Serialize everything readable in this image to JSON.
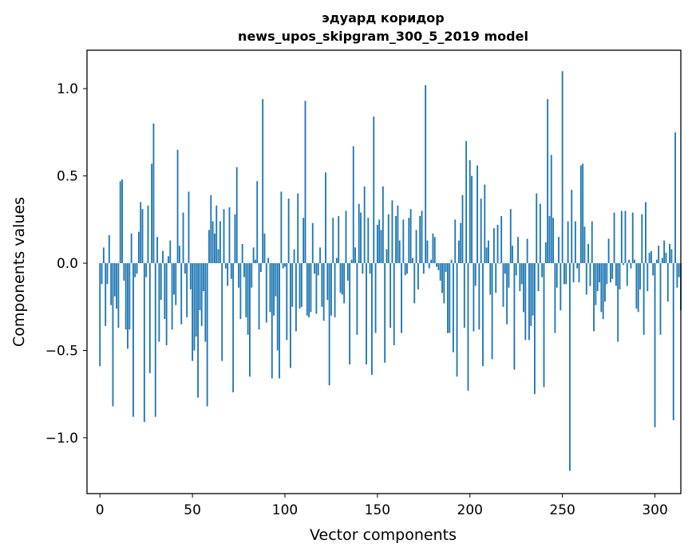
{
  "chart_data": {
    "type": "bar",
    "title": "эдуард коридор",
    "subtitle": "news_upos_skipgram_300_5_2019 model",
    "xlabel": "Vector components",
    "ylabel": "Components values",
    "xlim": [
      -7,
      314
    ],
    "ylim": [
      -1.32,
      1.22
    ],
    "x_ticks": [
      0,
      50,
      100,
      150,
      200,
      250,
      300
    ],
    "x_tick_labels": [
      "0",
      "50",
      "100",
      "150",
      "200",
      "250",
      "300"
    ],
    "y_ticks": [
      -1.0,
      -0.5,
      0.0,
      0.5,
      1.0
    ],
    "y_tick_labels": [
      "−1.0",
      "−0.5",
      "0.0",
      "0.5",
      "1.0"
    ],
    "color": "#1f77b4",
    "values": [
      -0.59,
      -0.12,
      0.09,
      -0.36,
      -0.12,
      0.16,
      -0.24,
      -0.82,
      -0.19,
      -0.26,
      -0.37,
      0.47,
      0.48,
      -0.1,
      -0.38,
      -0.49,
      -0.38,
      0.17,
      -0.88,
      -0.08,
      -0.06,
      0.18,
      0.35,
      0.31,
      -0.91,
      -0.08,
      0.33,
      -0.63,
      0.57,
      0.8,
      -0.88,
      0.15,
      -0.45,
      -0.21,
      0.07,
      -0.32,
      -0.47,
      0.04,
      0.13,
      -0.38,
      -0.18,
      -0.24,
      0.65,
      0.1,
      -0.35,
      0.29,
      -0.06,
      -0.31,
      0.41,
      -0.15,
      -0.56,
      -0.5,
      -0.42,
      -0.77,
      -0.27,
      -0.36,
      -0.16,
      -0.45,
      -0.82,
      0.19,
      0.39,
      0.24,
      0.17,
      0.33,
      0.08,
      0.24,
      -0.56,
      0.31,
      -0.03,
      -0.13,
      0.32,
      -0.09,
      -0.74,
      0.28,
      0.55,
      -0.14,
      -0.32,
      0.11,
      -0.08,
      -0.31,
      -0.41,
      -0.65,
      -0.14,
      0.09,
      0.02,
      0.47,
      -0.38,
      -0.05,
      0.94,
      0.17,
      -0.34,
      0.03,
      -0.28,
      -0.66,
      -0.3,
      -0.19,
      -0.5,
      -0.66,
      0.41,
      -0.03,
      -0.02,
      -0.44,
      0.37,
      -0.6,
      -0.25,
      0.08,
      -0.39,
      0.4,
      -0.26,
      -0.25,
      0.26,
      0.93,
      -0.3,
      -0.31,
      -0.28,
      0.23,
      -0.06,
      -0.29,
      -0.07,
      0.09,
      -0.25,
      -0.33,
      0.52,
      -0.21,
      -0.7,
      -0.3,
      0.26,
      -0.31,
      0.03,
      0.27,
      -0.17,
      -0.18,
      -0.23,
      0.3,
      -0.1,
      -0.58,
      0.02,
      0.67,
      0.09,
      -0.41,
      0.34,
      0.29,
      -0.06,
      0.44,
      -0.58,
      0.26,
      -0.06,
      -0.64,
      0.84,
      -0.4,
      0.22,
      0.25,
      0.19,
      0.44,
      -0.57,
      0.08,
      0.28,
      -0.37,
      0.36,
      -0.47,
      0.27,
      0.33,
      0.13,
      -0.4,
      0.25,
      -0.07,
      -0.06,
      0.26,
      0.31,
      0.03,
      -0.23,
      0.19,
      -0.15,
      0.27,
      0.3,
      -0.06,
      1.02,
      0.13,
      -0.03,
      0.02,
      0.17,
      0.15,
      -0.02,
      -0.04,
      -0.1,
      -0.17,
      -0.23,
      -0.05,
      -0.4,
      -0.4,
      0.02,
      -0.51,
      0.25,
      -0.65,
      0.13,
      0.23,
      0.39,
      -0.37,
      0.7,
      -0.73,
      0.59,
      0.5,
      -0.39,
      -0.13,
      0.56,
      -0.38,
      0.37,
      -0.59,
      0.45,
      0.09,
      0.13,
      -0.18,
      -0.55,
      0.2,
      -0.17,
      0.22,
      0.0,
      0.27,
      -0.25,
      -0.06,
      -0.35,
      -0.14,
      0.31,
      0.1,
      -0.61,
      -0.07,
      0.15,
      -0.16,
      -0.12,
      -0.28,
      -0.44,
      0.14,
      -0.44,
      -0.36,
      -0.3,
      -0.75,
      0.4,
      -0.16,
      0.34,
      -0.08,
      -0.71,
      0.12,
      0.94,
      0.27,
      0.62,
      0.26,
      -0.4,
      -0.14,
      0.15,
      -0.27,
      1.1,
      -0.12,
      -0.12,
      0.24,
      -1.19,
      0.42,
      -0.11,
      0.24,
      -0.03,
      -0.11,
      0.56,
      0.57,
      0.21,
      -0.18,
      0.11,
      -0.13,
      0.24,
      -0.39,
      -0.24,
      -0.16,
      -0.11,
      -0.28,
      -0.32,
      -0.22,
      -0.12,
      0.14,
      -0.11,
      -0.09,
      0.29,
      -0.13,
      -0.45,
      -0.15,
      0.3,
      -0.01,
      0.3,
      -0.13,
      0.02,
      -0.03,
      0.29,
      0.02,
      -0.26,
      -0.28,
      -0.15,
      0.28,
      -0.41,
      0.35,
      -0.16,
      0.06,
      0.07,
      -0.07,
      -0.94,
      0.02,
      0.1,
      -0.41,
      0.03,
      0.13,
      0.06,
      -0.22,
      0.11,
      0.08,
      -0.9,
      0.75,
      -0.14,
      -0.08,
      -0.27
    ]
  }
}
